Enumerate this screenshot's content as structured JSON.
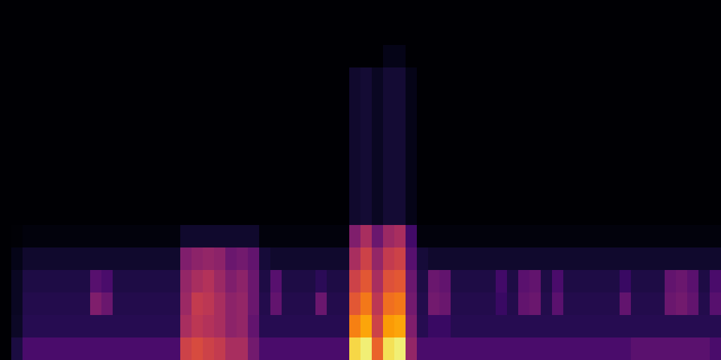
{
  "chart_data": {
    "type": "heatmap",
    "color": "inferno",
    "tick_labels": false,
    "zlim": [
      0,
      100
    ],
    "cells": [
      [
        0,
        0,
        0,
        0,
        0,
        0,
        0,
        0,
        0,
        0,
        0,
        0,
        0,
        0,
        0,
        0,
        0,
        0,
        0,
        0,
        0,
        0,
        0,
        0,
        0,
        0,
        0,
        0,
        0,
        0,
        0,
        0,
        0,
        0,
        0,
        0,
        0,
        0,
        0,
        0,
        0,
        0,
        0,
        0,
        0,
        0,
        0,
        0,
        0,
        0,
        0,
        0,
        0,
        0,
        0,
        0,
        0,
        0,
        0,
        0,
        0,
        0,
        0,
        0
      ],
      [
        0,
        0,
        0,
        0,
        0,
        0,
        0,
        0,
        0,
        0,
        0,
        0,
        0,
        0,
        0,
        0,
        0,
        0,
        0,
        0,
        0,
        0,
        0,
        0,
        0,
        0,
        0,
        0,
        0,
        0,
        0,
        0,
        0,
        0,
        0,
        0,
        0,
        0,
        0,
        0,
        0,
        0,
        0,
        0,
        0,
        0,
        0,
        0,
        0,
        0,
        0,
        0,
        0,
        0,
        0,
        0,
        0,
        0,
        0,
        0,
        0,
        0,
        0,
        0
      ],
      [
        0,
        0,
        0,
        0,
        0,
        0,
        0,
        0,
        0,
        0,
        0,
        0,
        0,
        0,
        0,
        0,
        0,
        0,
        0,
        0,
        0,
        0,
        0,
        0,
        0,
        0,
        0,
        0,
        0,
        0,
        0,
        0,
        0,
        0,
        4,
        4,
        0,
        0,
        0,
        0,
        0,
        0,
        0,
        0,
        0,
        0,
        0,
        0,
        0,
        0,
        0,
        0,
        0,
        0,
        0,
        0,
        0,
        0,
        0,
        0,
        0,
        0,
        0,
        0
      ],
      [
        0,
        0,
        0,
        0,
        0,
        0,
        0,
        0,
        0,
        0,
        0,
        0,
        0,
        0,
        0,
        0,
        0,
        0,
        0,
        0,
        0,
        0,
        0,
        0,
        0,
        0,
        0,
        0,
        0,
        0,
        0,
        8,
        9,
        6,
        9,
        9,
        4,
        0,
        0,
        0,
        0,
        0,
        0,
        0,
        0,
        0,
        0,
        0,
        0,
        0,
        0,
        0,
        0,
        0,
        0,
        0,
        0,
        0,
        0,
        0,
        0,
        0,
        0,
        0
      ],
      [
        0,
        0,
        0,
        0,
        0,
        0,
        0,
        0,
        0,
        0,
        0,
        0,
        0,
        0,
        0,
        0,
        0,
        0,
        0,
        0,
        0,
        0,
        0,
        0,
        0,
        0,
        0,
        0,
        0,
        0,
        0,
        8,
        9,
        6,
        9,
        9,
        4,
        0,
        0,
        0,
        0,
        0,
        0,
        0,
        0,
        0,
        0,
        0,
        0,
        0,
        0,
        0,
        0,
        0,
        0,
        0,
        0,
        0,
        0,
        0,
        0,
        0,
        0,
        0
      ],
      [
        0,
        0,
        0,
        0,
        0,
        0,
        0,
        0,
        0,
        0,
        0,
        0,
        0,
        0,
        0,
        0,
        0,
        0,
        0,
        0,
        0,
        0,
        0,
        0,
        0,
        0,
        0,
        0,
        0,
        0,
        0,
        8,
        9,
        6,
        9,
        9,
        4,
        0,
        0,
        0,
        0,
        0,
        0,
        0,
        0,
        0,
        0,
        0,
        0,
        0,
        0,
        0,
        0,
        0,
        0,
        0,
        0,
        0,
        0,
        0,
        0,
        0,
        0,
        0
      ],
      [
        0,
        0,
        0,
        0,
        0,
        0,
        0,
        0,
        0,
        0,
        0,
        0,
        0,
        0,
        0,
        0,
        0,
        0,
        0,
        0,
        0,
        0,
        0,
        0,
        0,
        0,
        0,
        0,
        0,
        0,
        0,
        8,
        9,
        6,
        9,
        9,
        4,
        0,
        0,
        0,
        0,
        0,
        0,
        0,
        0,
        0,
        0,
        0,
        0,
        0,
        0,
        0,
        0,
        0,
        0,
        0,
        0,
        0,
        0,
        0,
        0,
        0,
        0,
        0
      ],
      [
        0,
        0,
        0,
        0,
        0,
        0,
        0,
        0,
        0,
        0,
        0,
        0,
        0,
        0,
        0,
        0,
        0,
        0,
        0,
        0,
        0,
        0,
        0,
        0,
        0,
        0,
        0,
        0,
        0,
        0,
        0,
        8,
        9,
        6,
        9,
        9,
        4,
        0,
        0,
        0,
        0,
        0,
        0,
        0,
        0,
        0,
        0,
        0,
        0,
        0,
        0,
        0,
        0,
        0,
        0,
        0,
        0,
        0,
        0,
        0,
        0,
        0,
        0,
        0
      ],
      [
        0,
        0,
        0,
        0,
        0,
        0,
        0,
        0,
        0,
        0,
        0,
        0,
        0,
        0,
        0,
        0,
        0,
        0,
        0,
        0,
        0,
        0,
        0,
        0,
        0,
        0,
        0,
        0,
        0,
        0,
        0,
        8,
        9,
        6,
        9,
        9,
        4,
        0,
        0,
        0,
        0,
        0,
        0,
        0,
        0,
        0,
        0,
        0,
        0,
        0,
        0,
        0,
        0,
        0,
        0,
        0,
        0,
        0,
        0,
        0,
        0,
        0,
        0,
        0
      ],
      [
        0,
        0,
        0,
        0,
        0,
        0,
        0,
        0,
        0,
        0,
        0,
        0,
        0,
        0,
        0,
        0,
        0,
        0,
        0,
        0,
        0,
        0,
        0,
        0,
        0,
        0,
        0,
        0,
        0,
        0,
        0,
        8,
        9,
        6,
        9,
        9,
        4,
        0,
        0,
        0,
        0,
        0,
        0,
        0,
        0,
        0,
        0,
        0,
        0,
        0,
        0,
        0,
        0,
        0,
        0,
        0,
        0,
        0,
        0,
        0,
        0,
        0,
        0,
        0
      ],
      [
        0,
        1,
        2,
        2,
        2,
        2,
        2,
        2,
        2,
        2,
        2,
        2,
        2,
        2,
        2,
        2,
        8,
        8,
        8,
        8,
        8,
        8,
        8,
        2,
        2,
        2,
        2,
        2,
        2,
        2,
        2,
        35,
        45,
        30,
        42,
        45,
        20,
        2,
        2,
        2,
        2,
        2,
        2,
        2,
        2,
        2,
        2,
        2,
        2,
        2,
        2,
        2,
        2,
        2,
        2,
        2,
        2,
        2,
        2,
        2,
        2,
        2,
        2,
        2
      ],
      [
        0,
        4,
        8,
        8,
        8,
        8,
        8,
        8,
        8,
        8,
        8,
        8,
        8,
        8,
        8,
        8,
        35,
        38,
        40,
        38,
        30,
        32,
        28,
        10,
        8,
        8,
        8,
        8,
        8,
        8,
        8,
        45,
        55,
        40,
        52,
        55,
        25,
        10,
        8,
        8,
        8,
        8,
        8,
        8,
        8,
        8,
        8,
        8,
        8,
        8,
        8,
        8,
        8,
        8,
        8,
        8,
        8,
        8,
        8,
        8,
        8,
        8,
        8,
        8
      ],
      [
        0,
        6,
        12,
        12,
        12,
        12,
        12,
        12,
        25,
        22,
        12,
        12,
        12,
        12,
        12,
        12,
        40,
        45,
        48,
        42,
        35,
        38,
        30,
        12,
        25,
        12,
        12,
        12,
        15,
        12,
        12,
        55,
        62,
        45,
        60,
        62,
        30,
        12,
        30,
        28,
        12,
        12,
        12,
        12,
        20,
        12,
        26,
        28,
        12,
        22,
        12,
        12,
        12,
        12,
        12,
        18,
        12,
        12,
        12,
        28,
        30,
        26,
        12,
        22
      ],
      [
        0,
        6,
        13,
        13,
        13,
        13,
        13,
        13,
        35,
        30,
        13,
        13,
        13,
        13,
        13,
        13,
        42,
        52,
        50,
        45,
        38,
        40,
        30,
        13,
        28,
        13,
        13,
        13,
        30,
        13,
        13,
        62,
        70,
        50,
        68,
        70,
        32,
        13,
        32,
        30,
        13,
        13,
        13,
        13,
        18,
        13,
        28,
        30,
        13,
        26,
        13,
        13,
        13,
        13,
        13,
        28,
        13,
        13,
        13,
        30,
        32,
        28,
        13,
        25
      ],
      [
        0,
        7,
        14,
        14,
        14,
        14,
        14,
        14,
        14,
        14,
        14,
        14,
        14,
        14,
        14,
        14,
        45,
        50,
        48,
        45,
        38,
        40,
        28,
        14,
        14,
        14,
        14,
        14,
        14,
        14,
        14,
        72,
        80,
        55,
        78,
        80,
        35,
        14,
        18,
        18,
        14,
        14,
        14,
        14,
        14,
        14,
        14,
        14,
        14,
        14,
        14,
        14,
        14,
        14,
        14,
        14,
        14,
        14,
        14,
        14,
        14,
        14,
        14,
        14
      ],
      [
        0,
        11,
        22,
        22,
        22,
        22,
        22,
        22,
        22,
        22,
        22,
        22,
        22,
        22,
        22,
        22,
        55,
        58,
        55,
        52,
        45,
        45,
        32,
        22,
        22,
        22,
        22,
        22,
        22,
        22,
        22,
        90,
        95,
        65,
        92,
        95,
        40,
        22,
        22,
        22,
        22,
        22,
        22,
        22,
        22,
        22,
        22,
        22,
        22,
        22,
        22,
        22,
        22,
        22,
        22,
        22,
        26,
        26,
        26,
        26,
        26,
        26,
        26,
        22
      ]
    ]
  }
}
